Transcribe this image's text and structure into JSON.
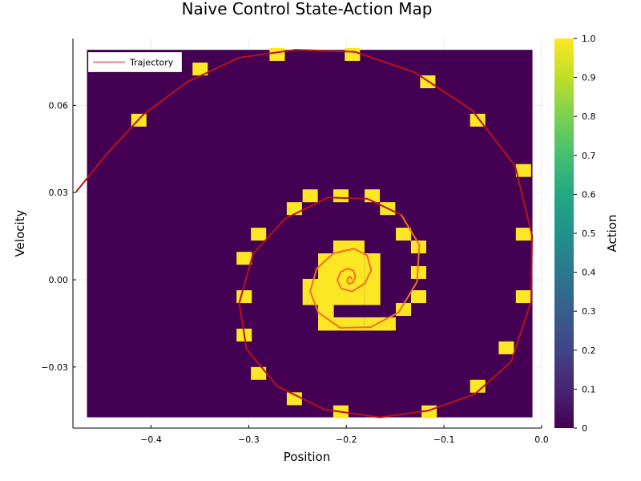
{
  "chart_data": {
    "type": "heatmap",
    "title": "Naive Control State-Action Map",
    "xlabel": "Position",
    "ylabel": "Velocity",
    "colorbar_label": "Action",
    "colormap": "viridis",
    "colors": {
      "low": "#440154",
      "high": "#fde725",
      "trajectory_outer": "#b8121a",
      "trajectory_inner": "#f07022",
      "legend_line": "#f28080"
    },
    "grid": true,
    "legend_position": "top-left",
    "xlim": [
      -0.48,
      0.0
    ],
    "ylim": [
      -0.051,
      0.083
    ],
    "xticks": [
      -0.4,
      -0.3,
      -0.2,
      -0.1,
      0.0
    ],
    "xtick_labels": [
      "−0.4",
      "−0.3",
      "−0.2",
      "−0.1",
      "0.0"
    ],
    "yticks": [
      -0.03,
      0.0,
      0.03,
      0.06
    ],
    "ytick_labels": [
      "−0.03",
      "0.00",
      "0.03",
      "0.06"
    ],
    "colorbar_ticks": [
      0,
      0.1,
      0.2,
      0.3,
      0.4,
      0.5,
      0.6,
      0.7,
      0.8,
      0.9,
      1.0
    ],
    "colorbar_tick_labels": [
      "0",
      "0.1",
      "0.2",
      "0.3",
      "0.4",
      "0.5",
      "0.6",
      "0.7",
      "0.8",
      "0.9",
      "1.0"
    ],
    "heatmap_extent": {
      "x": [
        -0.4656,
        -0.0094
      ],
      "y": [
        -0.0473,
        0.0791
      ]
    },
    "heatmap_background_value": 0,
    "action_one_cells": [
      [
        -0.4125,
        0.0549
      ],
      [
        -0.3497,
        0.0725
      ],
      [
        -0.2708,
        0.0775
      ],
      [
        -0.1938,
        0.0775
      ],
      [
        -0.1166,
        0.0681
      ],
      [
        -0.0655,
        0.0549
      ],
      [
        -0.0186,
        0.0376
      ],
      [
        -0.0186,
        0.0157
      ],
      [
        -0.0186,
        -0.0058
      ],
      [
        -0.0362,
        -0.0234
      ],
      [
        -0.0655,
        -0.0366
      ],
      [
        -0.1152,
        -0.0454
      ],
      [
        -0.2056,
        -0.0454
      ],
      [
        -0.2532,
        -0.0409
      ],
      [
        -0.2899,
        -0.0322
      ],
      [
        -0.3046,
        -0.019
      ],
      [
        -0.3046,
        -0.0058
      ],
      [
        -0.3046,
        0.0074
      ],
      [
        -0.2899,
        0.0157
      ],
      [
        -0.2532,
        0.0245
      ],
      [
        -0.237,
        0.0289
      ],
      [
        -0.2056,
        0.0289
      ],
      [
        -0.1735,
        0.0289
      ],
      [
        -0.1577,
        0.0245
      ],
      [
        -0.1415,
        0.0157
      ],
      [
        -0.126,
        0.0113
      ],
      [
        -0.126,
        0.0025
      ],
      [
        -0.126,
        -0.0058
      ],
      [
        -0.1415,
        -0.0102
      ]
    ],
    "action_one_block": {
      "column_x": [
        -0.237,
        -0.2211,
        -0.2056,
        -0.1897,
        -0.1735,
        -0.1577
      ],
      "row_y": [
        0.0113,
        0.0069,
        0.0025,
        -0.0019,
        -0.0063,
        -0.0107,
        -0.0151
      ],
      "mask": [
        [
          0,
          0,
          1,
          1,
          0,
          0
        ],
        [
          0,
          1,
          1,
          1,
          1,
          0
        ],
        [
          0,
          1,
          1,
          1,
          1,
          0
        ],
        [
          1,
          1,
          1,
          1,
          1,
          0
        ],
        [
          1,
          1,
          1,
          1,
          1,
          0
        ],
        [
          0,
          1,
          0,
          0,
          0,
          0
        ],
        [
          0,
          1,
          1,
          1,
          1,
          1
        ]
      ]
    },
    "series": [
      {
        "name": "Trajectory",
        "x": [
          -0.4764,
          -0.446,
          -0.4084,
          -0.3626,
          -0.3099,
          -0.252,
          -0.1911,
          -0.1297,
          -0.0712,
          -0.0272,
          -0.0098,
          -0.0107,
          -0.0312,
          -0.0684,
          -0.116,
          -0.1656,
          -0.2222,
          -0.2708,
          -0.3022,
          -0.3097,
          -0.2955,
          -0.2627,
          -0.2188,
          -0.1786,
          -0.1437,
          -0.1252,
          -0.1276,
          -0.1464,
          -0.1751,
          -0.2064,
          -0.2288,
          -0.237,
          -0.2304,
          -0.2132,
          -0.1922,
          -0.1787,
          -0.1745,
          -0.1812,
          -0.194,
          -0.2052,
          -0.2093,
          -0.2058,
          -0.1987,
          -0.1929,
          -0.1906,
          -0.1934,
          -0.1968,
          -0.199,
          -0.1985,
          -0.1963,
          -0.1946
        ],
        "y": [
          0.0304,
          0.043,
          0.0567,
          0.0681,
          0.0764,
          0.0791,
          0.0784,
          0.0713,
          0.0583,
          0.0392,
          0.0152,
          -0.0074,
          -0.0282,
          -0.0393,
          -0.045,
          -0.0473,
          -0.0446,
          -0.0366,
          -0.0238,
          -0.008,
          0.0089,
          0.021,
          0.0283,
          0.0279,
          0.0223,
          0.012,
          -0.0007,
          -0.0112,
          -0.0163,
          -0.0165,
          -0.0112,
          -0.004,
          0.0038,
          0.0091,
          0.0107,
          0.0084,
          0.0033,
          -0.0013,
          -0.004,
          -0.003,
          -0.0001,
          0.0027,
          0.0039,
          0.0032,
          0.0011,
          -0.0009,
          -0.0015,
          -0.0007,
          0.0006,
          0.0011,
          0.0004
        ]
      }
    ]
  }
}
